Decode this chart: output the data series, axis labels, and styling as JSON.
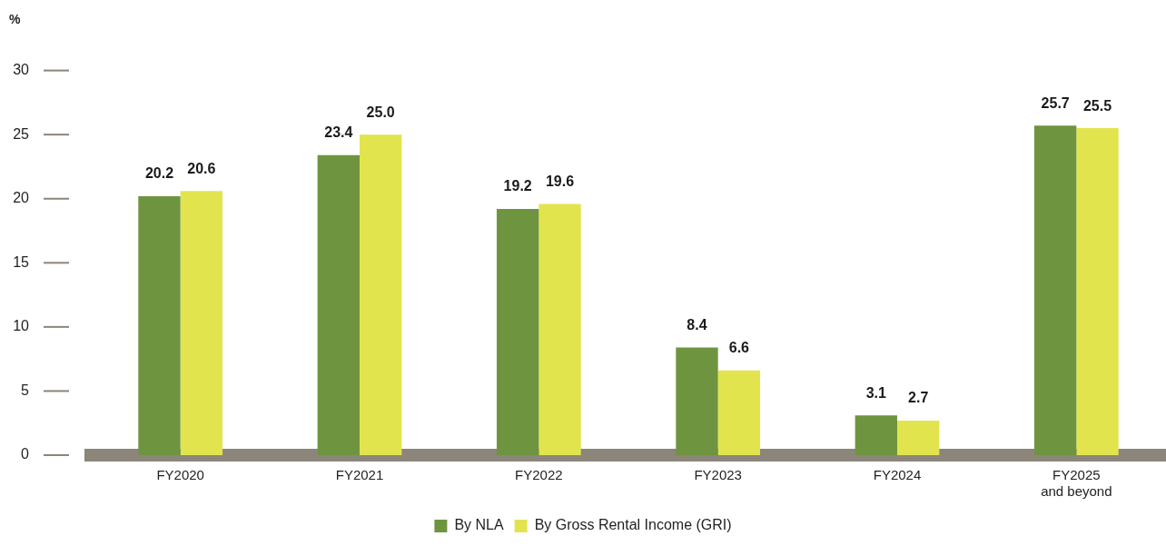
{
  "chart_data": {
    "type": "bar",
    "ylabel": "%",
    "categories": [
      "FY2020",
      "FY2021",
      "FY2022",
      "FY2023",
      "FY2024",
      "FY2025\nand beyond"
    ],
    "series": [
      {
        "name": "By NLA",
        "color": "#6f9440",
        "values": [
          20.2,
          23.4,
          19.2,
          8.4,
          3.1,
          25.7
        ],
        "value_labels": [
          "20.2",
          "23.4",
          "19.2",
          "8.4",
          "3.1",
          "25.7"
        ]
      },
      {
        "name": "By Gross Rental Income (GRI)",
        "color": "#e2e44e",
        "values": [
          20.6,
          25.0,
          19.6,
          6.6,
          2.7,
          25.5
        ],
        "value_labels": [
          "20.6",
          "25.0",
          "19.6",
          "6.6",
          "2.7",
          "25.5"
        ]
      }
    ],
    "ylim": [
      0,
      30
    ],
    "yticks": [
      0,
      5,
      10,
      15,
      20,
      25,
      30
    ],
    "grid": false,
    "legend": "bottom"
  }
}
